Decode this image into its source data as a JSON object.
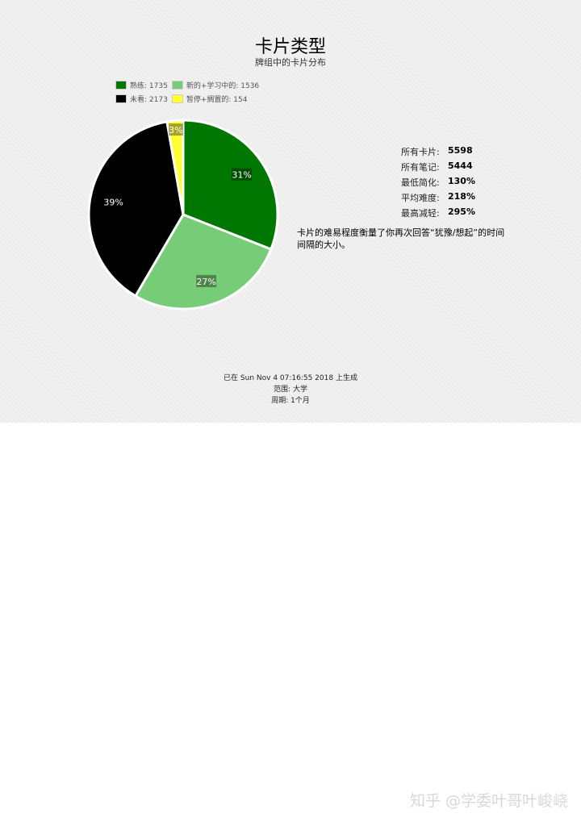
{
  "chart_data": {
    "type": "pie",
    "title": "卡片类型",
    "subtitle": "牌组中的卡片分布",
    "legend_placement": "top-left",
    "slices": [
      {
        "label": "熟练",
        "legend": "熟练: 1735",
        "value": 1735,
        "percent_label": "31%",
        "color": "#007700"
      },
      {
        "label": "新的+学习中的",
        "legend": "新的+学习中的: 1536",
        "value": 1536,
        "percent_label": "27%",
        "color": "#77cc77"
      },
      {
        "label": "未看",
        "legend": "未看: 2173",
        "value": 2173,
        "percent_label": "39%",
        "color": "#000000"
      },
      {
        "label": "暂停+搁置的",
        "legend": "暂停+搁置的: 154",
        "value": 154,
        "percent_label": "3%",
        "color": "#ffff33"
      }
    ]
  },
  "stats": [
    {
      "label": "所有卡片:",
      "value": "5598"
    },
    {
      "label": "所有笔记:",
      "value": "5444"
    },
    {
      "label": "最低简化:",
      "value": "130%"
    },
    {
      "label": "平均难度:",
      "value": "218%"
    },
    {
      "label": "最高减轻:",
      "value": "295%"
    }
  ],
  "note": "卡片的难易程度衡量了你再次回答“犹豫/想起”的时间间隔的大小。",
  "footer": {
    "generated": "已在 Sun Nov 4 07:16:55 2018 上生成",
    "scope": "范围: 大学",
    "period": "周期: 1个月"
  },
  "watermark": "知乎 @学委叶哥叶峻峣"
}
